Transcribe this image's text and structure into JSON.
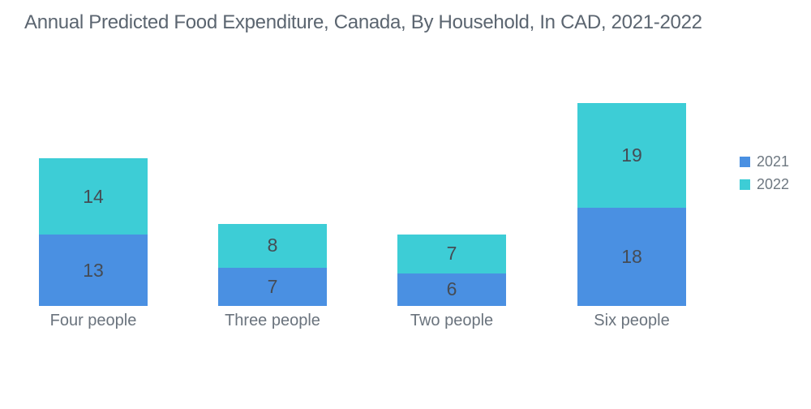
{
  "chart_data": {
    "type": "bar",
    "stacked": true,
    "title": "Annual Predicted Food Expenditure, Canada, By Household, In CAD, 2021-2022",
    "categories": [
      "Four people",
      "Three people",
      "Two people",
      "Six people"
    ],
    "series": [
      {
        "name": "2021",
        "color": "#4A90E2",
        "values": [
          13,
          7,
          6,
          18
        ]
      },
      {
        "name": "2022",
        "color": "#3DCDD6",
        "values": [
          14,
          8,
          7,
          19
        ]
      }
    ],
    "totals": [
      27,
      15,
      13,
      37
    ],
    "xlabel": "",
    "ylabel": "",
    "ylim": [
      0,
      37
    ],
    "grid": false,
    "axes_visible": false,
    "data_labels": true,
    "legend_position": "right",
    "colors": {
      "background": "#FFFFFF",
      "title_text": "#5B6570",
      "data_label_text": "#454C55",
      "category_label_text": "#6A737D",
      "legend_text": "#6E7881"
    }
  }
}
